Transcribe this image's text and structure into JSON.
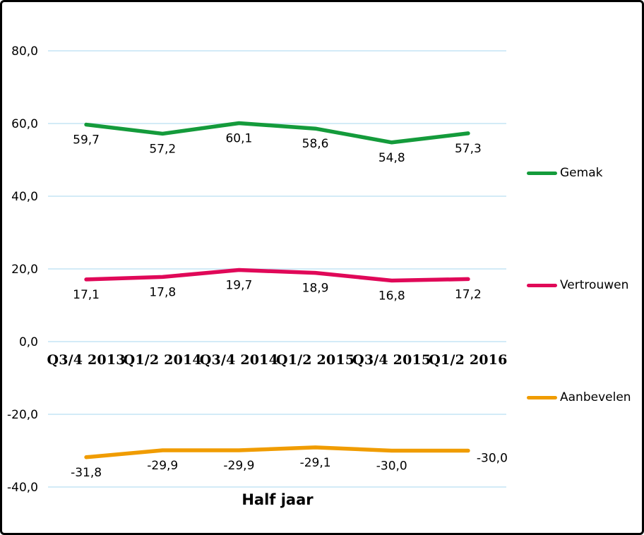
{
  "chart_data": {
    "type": "line",
    "categories": [
      "Q3/4 2013",
      "Q1/2 2014",
      "Q3/4 2014",
      "Q1/2 2015",
      "Q3/4 2015",
      "Q1/2 2016"
    ],
    "series": [
      {
        "name": "Gemak",
        "color": "#149B3B",
        "values": [
          59.7,
          57.2,
          60.1,
          58.6,
          54.8,
          57.3
        ]
      },
      {
        "name": "Vertrouwen",
        "color": "#E00858",
        "values": [
          17.1,
          17.8,
          19.7,
          18.9,
          16.8,
          17.2
        ]
      },
      {
        "name": "Aanbevelen",
        "color": "#F09C00",
        "values": [
          -31.8,
          -29.9,
          -29.9,
          -29.1,
          -30.0,
          -30.0
        ],
        "last_label_right": true
      }
    ],
    "xlabel": "Half jaar",
    "ylabel": "",
    "ylim": [
      -40,
      80
    ],
    "ytick_step": 20,
    "ytick_labels": [
      "80,0",
      "60,0",
      "40,0",
      "20,0",
      "0,0",
      "-20,0",
      "-40,0"
    ],
    "grid": true,
    "gridline_color": "#D3EBF7",
    "legend_position": "right",
    "data_labels": true,
    "decimal_separator": ","
  }
}
